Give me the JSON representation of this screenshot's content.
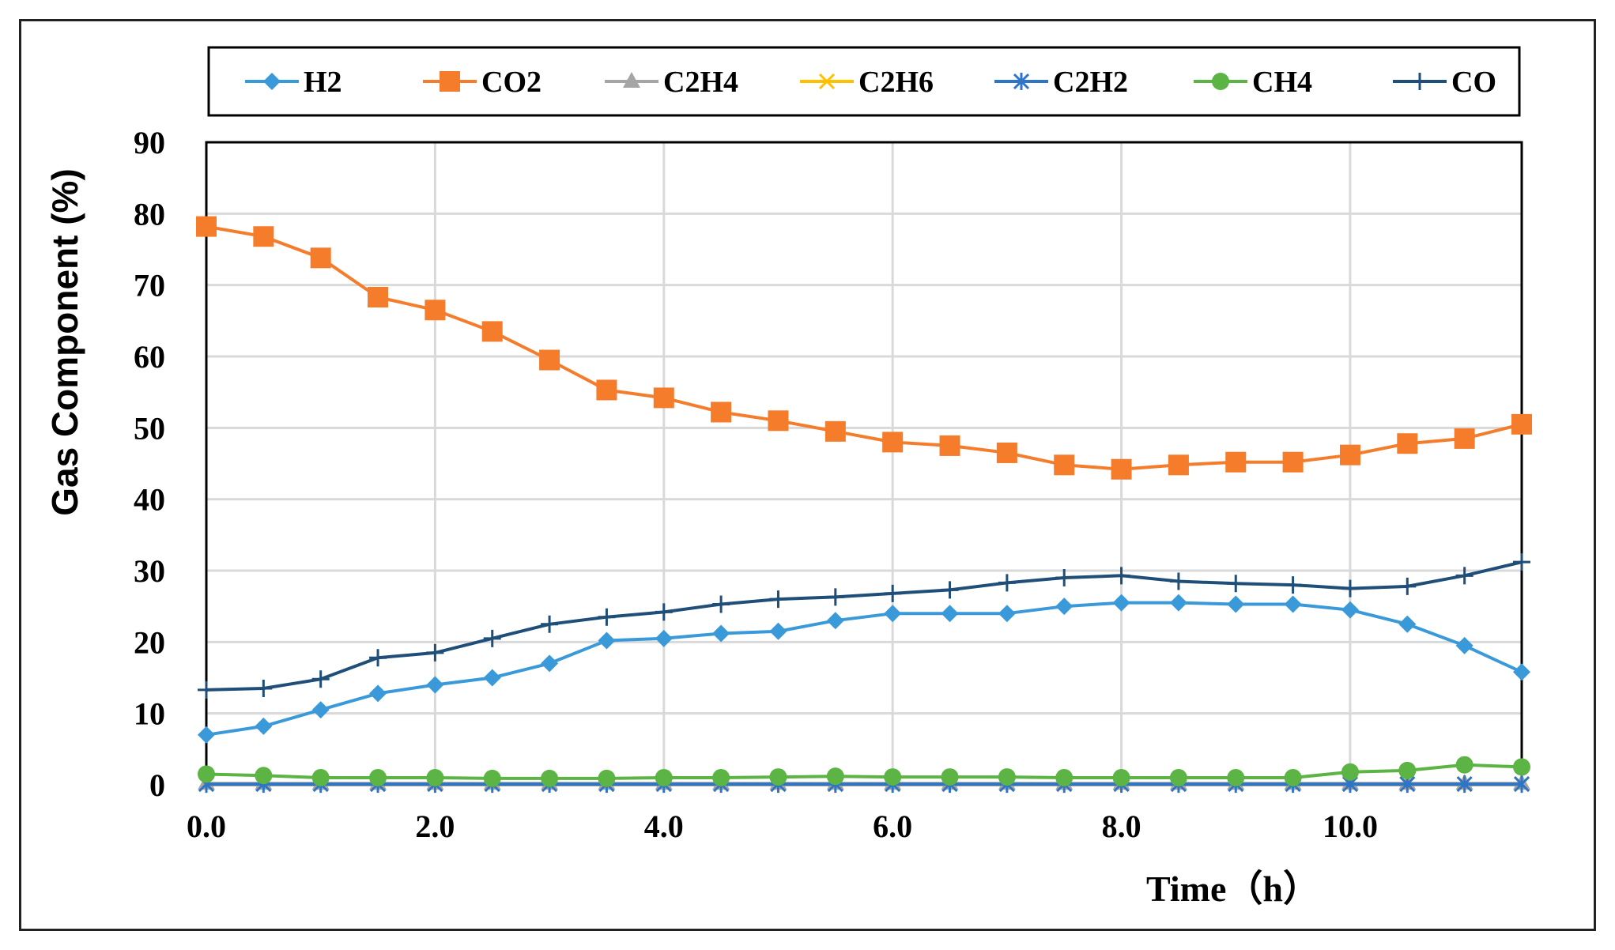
{
  "chart_data": {
    "type": "line",
    "title": "",
    "xlabel": "Time（h）",
    "ylabel": "Gas Component (%)",
    "xlim": [
      0,
      11.5
    ],
    "ylim": [
      0,
      90
    ],
    "x_ticks": [
      "0.0",
      "2.0",
      "4.0",
      "6.0",
      "8.0",
      "10.0"
    ],
    "y_ticks": [
      "0",
      "10",
      "20",
      "30",
      "40",
      "50",
      "60",
      "70",
      "80",
      "90"
    ],
    "grid": true,
    "legend_position": "top",
    "x": [
      0,
      0.5,
      1,
      1.5,
      2,
      2.5,
      3,
      3.5,
      4,
      4.5,
      5,
      5.5,
      6,
      6.5,
      7,
      7.5,
      8,
      8.5,
      9,
      9.5,
      10,
      10.5,
      11,
      11.5
    ],
    "series": [
      {
        "name": "H2",
        "color": "#3A9AD9",
        "marker": "diamond",
        "values": [
          7.0,
          8.2,
          10.5,
          12.8,
          14.0,
          15.0,
          17.0,
          20.2,
          20.5,
          21.2,
          21.5,
          23.0,
          24.0,
          24.0,
          24.0,
          25.0,
          25.5,
          25.5,
          25.3,
          25.3,
          24.5,
          22.5,
          19.5,
          15.8
        ]
      },
      {
        "name": "CO2",
        "color": "#F57C2A",
        "marker": "square",
        "values": [
          78.2,
          76.8,
          73.8,
          68.3,
          66.5,
          63.5,
          59.5,
          55.3,
          54.2,
          52.2,
          51.0,
          49.5,
          48.0,
          47.5,
          46.5,
          44.8,
          44.2,
          44.8,
          45.2,
          45.2,
          46.2,
          47.8,
          48.5,
          50.5
        ]
      },
      {
        "name": "C2H4",
        "color": "#A5A5A5",
        "marker": "triangle",
        "values": [
          0.2,
          0.2,
          0.2,
          0.2,
          0.2,
          0.2,
          0.2,
          0.2,
          0.2,
          0.2,
          0.2,
          0.2,
          0.2,
          0.2,
          0.2,
          0.2,
          0.2,
          0.2,
          0.2,
          0.2,
          0.2,
          0.2,
          0.2,
          0.2
        ]
      },
      {
        "name": "C2H6",
        "color": "#FFC000",
        "marker": "x",
        "values": [
          0.1,
          0.1,
          0.1,
          0.1,
          0.1,
          0.1,
          0.1,
          0.1,
          0.1,
          0.1,
          0.1,
          0.1,
          0.1,
          0.1,
          0.1,
          0.1,
          0.1,
          0.1,
          0.1,
          0.1,
          0.1,
          0.1,
          0.1,
          0.1
        ]
      },
      {
        "name": "C2H2",
        "color": "#2E75C8",
        "marker": "star",
        "values": [
          0.1,
          0.1,
          0.1,
          0.1,
          0.1,
          0.1,
          0.1,
          0.1,
          0.1,
          0.1,
          0.1,
          0.1,
          0.1,
          0.1,
          0.1,
          0.1,
          0.1,
          0.1,
          0.1,
          0.1,
          0.1,
          0.1,
          0.1,
          0.1
        ]
      },
      {
        "name": "CH4",
        "color": "#5BB443",
        "marker": "circle",
        "values": [
          1.5,
          1.3,
          1.0,
          1.0,
          1.0,
          0.9,
          0.9,
          0.9,
          1.0,
          1.0,
          1.1,
          1.2,
          1.1,
          1.1,
          1.1,
          1.0,
          1.0,
          1.0,
          1.0,
          1.0,
          1.8,
          2.0,
          2.8,
          2.5
        ]
      },
      {
        "name": "CO",
        "color": "#1F4E79",
        "marker": "plus",
        "values": [
          13.3,
          13.5,
          14.8,
          17.8,
          18.5,
          20.5,
          22.5,
          23.5,
          24.2,
          25.3,
          26.0,
          26.3,
          26.8,
          27.3,
          28.3,
          29.0,
          29.3,
          28.5,
          28.2,
          28.0,
          27.5,
          27.8,
          29.3,
          31.2
        ]
      }
    ]
  }
}
